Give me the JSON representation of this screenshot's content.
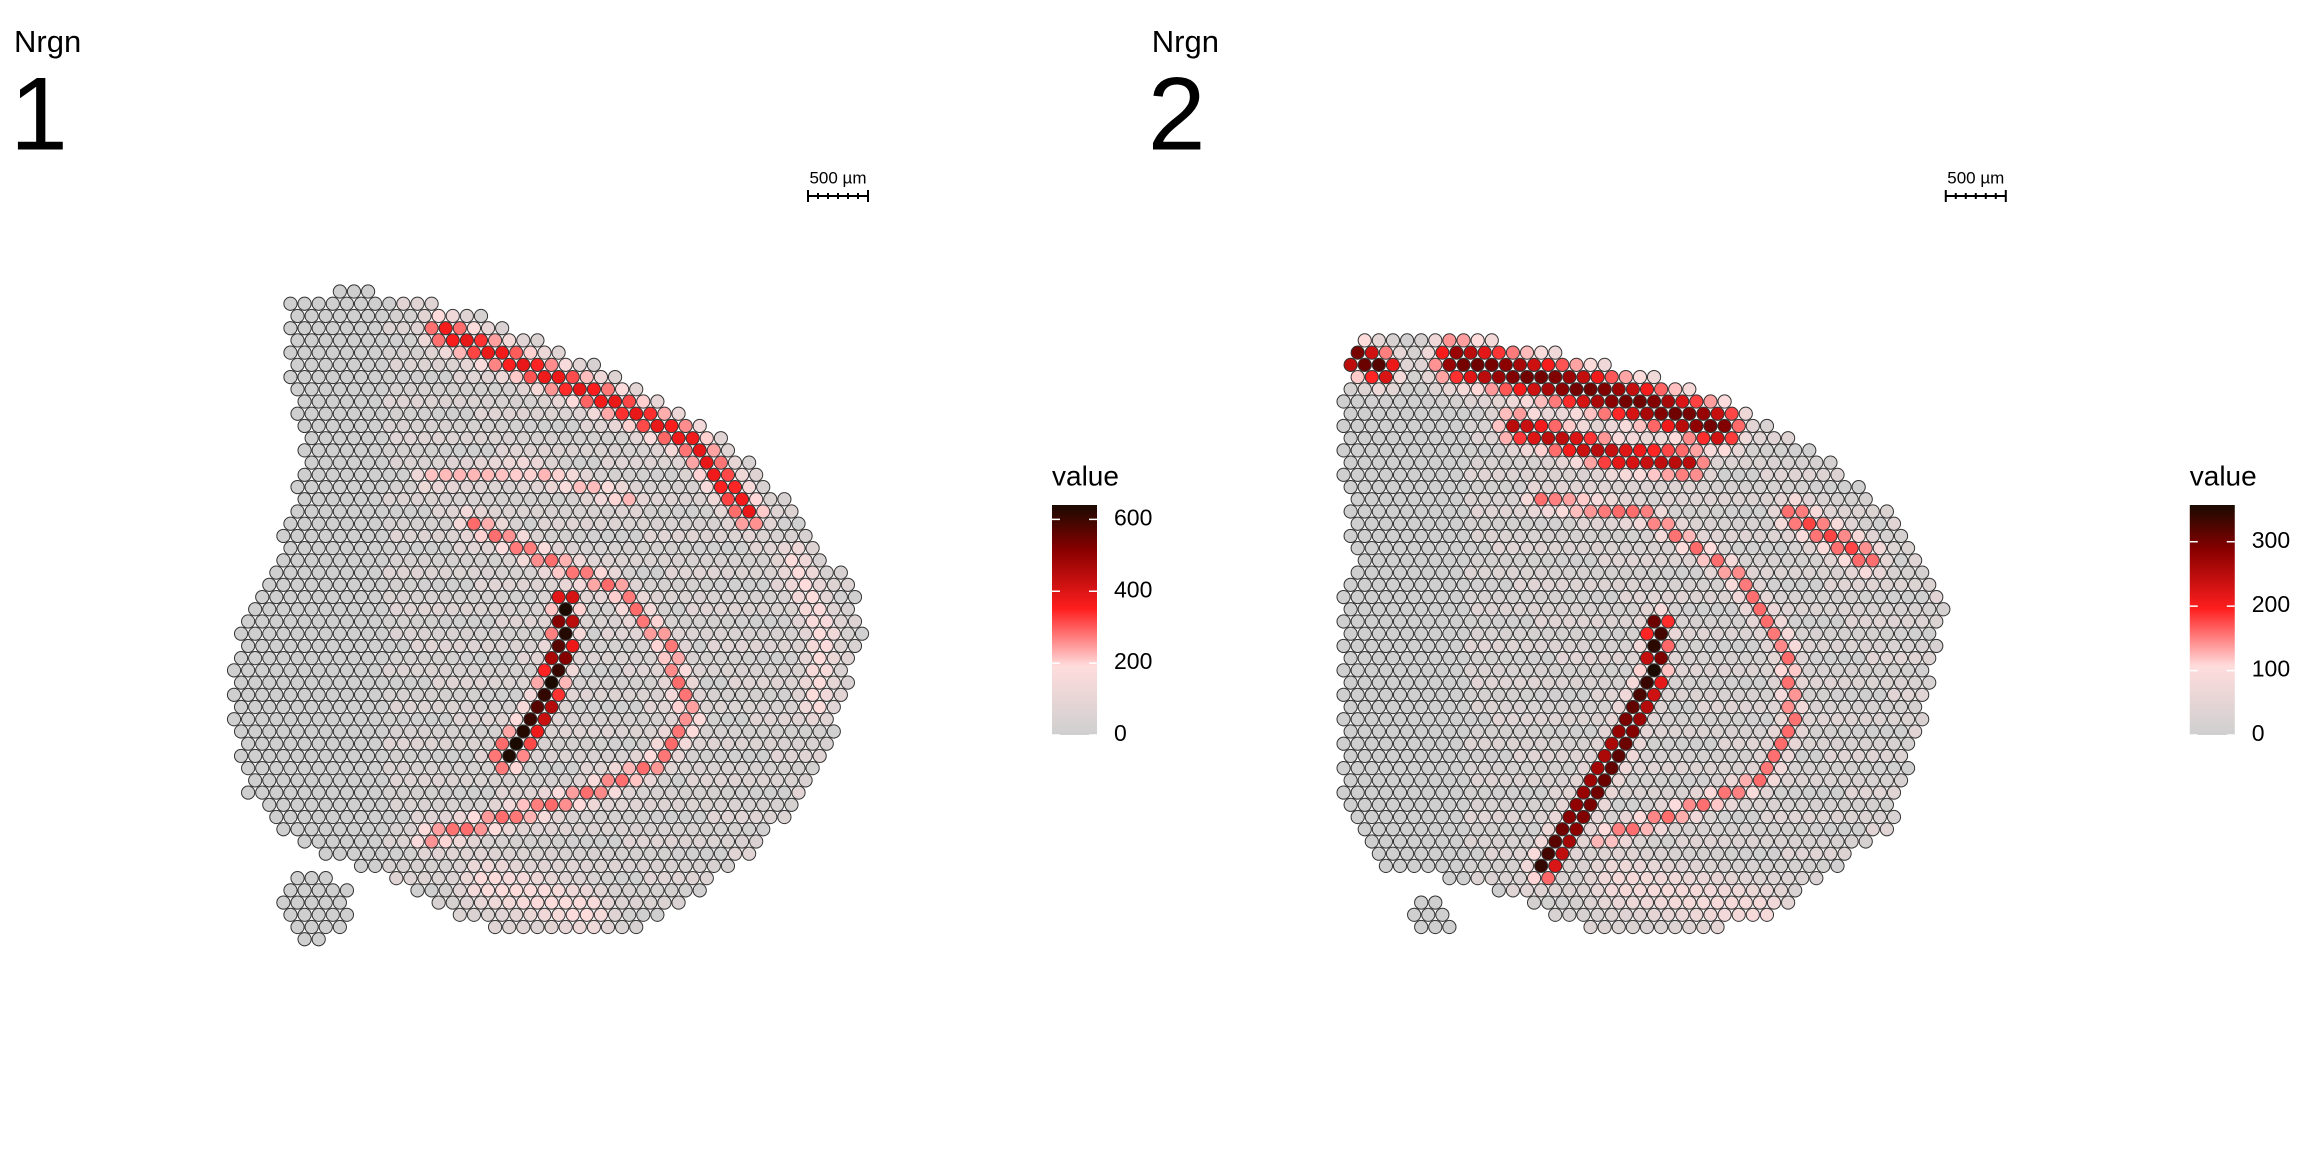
{
  "chart_data": [
    {
      "type": "spatial",
      "title": "Nrgn",
      "subtitle": "1",
      "scale_bar": "500 µm",
      "legend_title": "value",
      "clim": [
        0,
        640
      ],
      "cticks": [
        0,
        200,
        400,
        600
      ]
    },
    {
      "type": "spatial",
      "title": "Nrgn",
      "subtitle": "2",
      "scale_bar": "500 µm",
      "legend_title": "value",
      "clim": [
        0,
        357
      ],
      "cticks": [
        0,
        100,
        200,
        300
      ]
    }
  ]
}
